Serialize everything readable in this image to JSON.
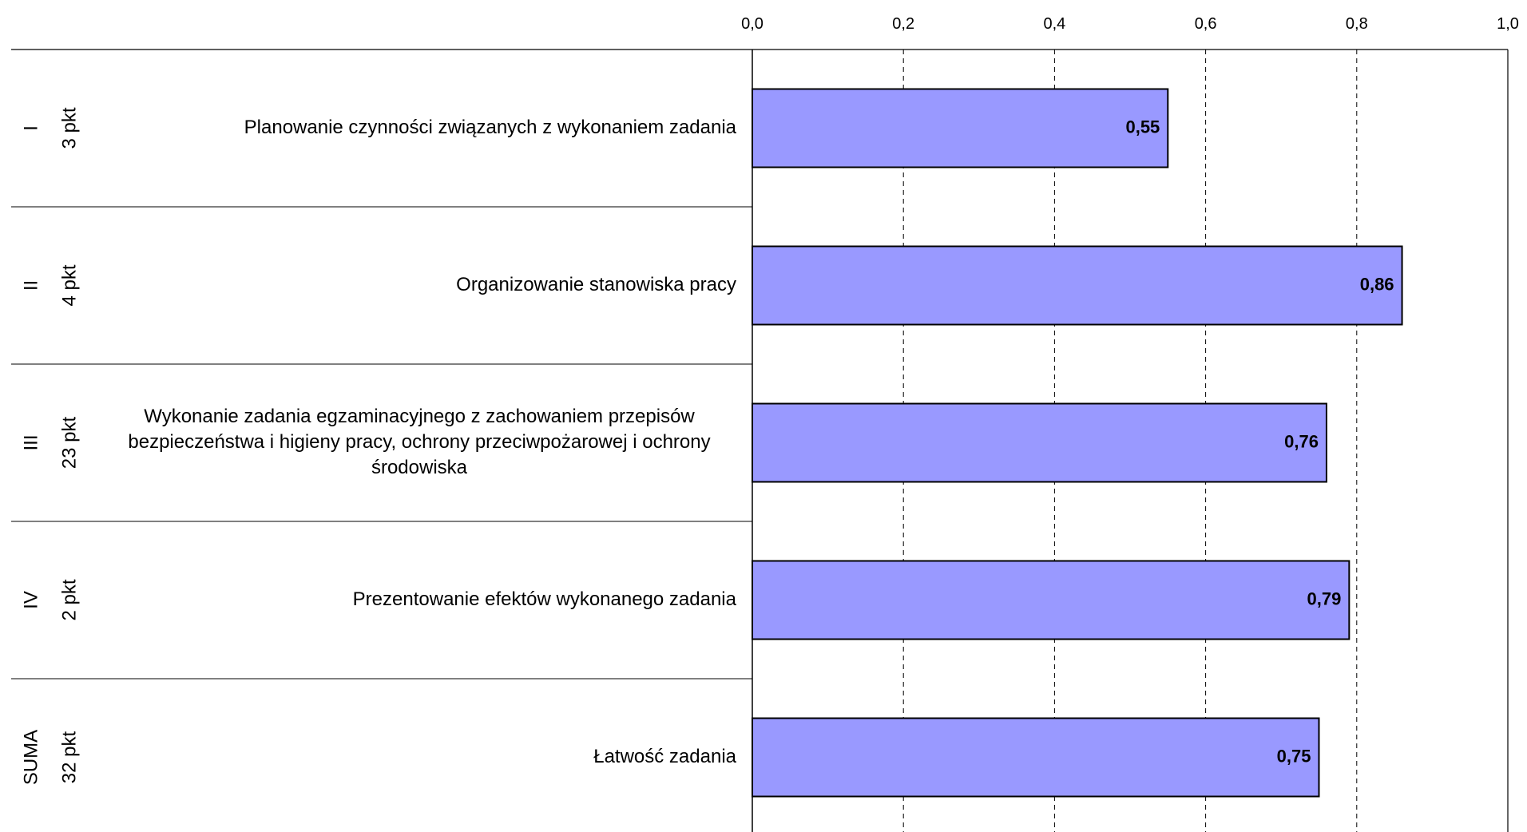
{
  "chart_data": {
    "type": "bar",
    "orientation": "horizontal",
    "xlim": [
      0,
      1
    ],
    "ticks": [
      "0,0",
      "0,2",
      "0,4",
      "0,6",
      "0,8",
      "1,0"
    ],
    "tick_values": [
      0,
      0.2,
      0.4,
      0.6,
      0.8,
      1.0
    ],
    "grid": "dashed vertical",
    "bar_color": "#9999ff",
    "categories": [
      {
        "part": "I",
        "points": "3 pkt",
        "label": [
          "Planowanie czynności związanych z wykonaniem zadania"
        ],
        "value": 0.55,
        "value_label": "0,55"
      },
      {
        "part": "II",
        "points": "4 pkt",
        "label": [
          "Organizowanie stanowiska pracy"
        ],
        "value": 0.86,
        "value_label": "0,86"
      },
      {
        "part": "III",
        "points": "23 pkt",
        "label": [
          "Wykonanie zadania egzaminacyjnego z zachowaniem przepisów",
          "bezpieczeństwa i higieny pracy, ochrony przeciwpożarowej i ochrony",
          "środowiska"
        ],
        "value": 0.76,
        "value_label": "0,76"
      },
      {
        "part": "IV",
        "points": "2 pkt",
        "label": [
          "Prezentowanie efektów wykonanego zadania"
        ],
        "value": 0.79,
        "value_label": "0,79"
      },
      {
        "part": "SUMA",
        "points": "32 pkt",
        "label": [
          "Łatwość zadania"
        ],
        "value": 0.75,
        "value_label": "0,75"
      }
    ]
  }
}
